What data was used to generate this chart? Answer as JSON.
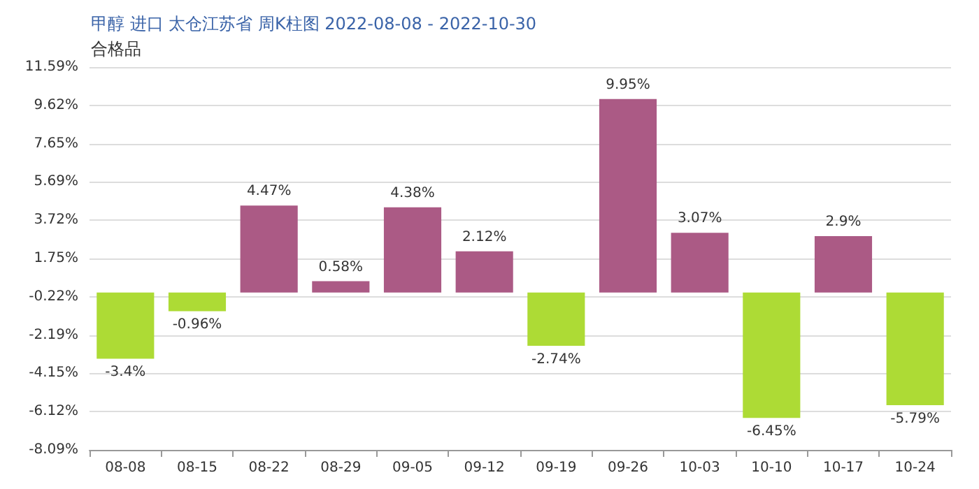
{
  "chart_data": {
    "type": "bar",
    "title": "甲醇 进口 太仓江苏省 周K柱图 2022-08-08 - 2022-10-30",
    "subtitle": "合格品",
    "categories": [
      "08-08",
      "08-15",
      "08-22",
      "08-29",
      "09-05",
      "09-12",
      "09-19",
      "09-26",
      "10-03",
      "10-10",
      "10-17",
      "10-24"
    ],
    "values": [
      -3.4,
      -0.96,
      4.47,
      0.58,
      4.38,
      2.12,
      -2.74,
      9.95,
      3.07,
      -6.45,
      2.9,
      -5.79
    ],
    "colors": [
      "#addb35",
      "#addb35",
      "#ab5a85",
      "#ab5a85",
      "#ab5a85",
      "#ab5a85",
      "#addb35",
      "#ab5a85",
      "#ab5a85",
      "#addb35",
      "#ab5a85",
      "#addb35"
    ],
    "value_labels": [
      "-3.4%",
      "-0.96%",
      "4.47%",
      "0.58%",
      "4.38%",
      "2.12%",
      "-2.74%",
      "9.95%",
      "3.07%",
      "-6.45%",
      "2.9%",
      "-5.79%"
    ],
    "ylim": [
      -8.09,
      11.59
    ],
    "yticks": [
      {
        "value": -8.09,
        "label": "-8.09%"
      },
      {
        "value": -6.12,
        "label": "-6.12%"
      },
      {
        "value": -4.15,
        "label": "-4.15%"
      },
      {
        "value": -2.19,
        "label": "-2.19%"
      },
      {
        "value": -0.22,
        "label": "-0.22%"
      },
      {
        "value": 1.75,
        "label": "1.75%"
      },
      {
        "value": 3.72,
        "label": "3.72%"
      },
      {
        "value": 5.69,
        "label": "5.69%"
      },
      {
        "value": 7.65,
        "label": "7.65%"
      },
      {
        "value": 9.62,
        "label": "9.62%"
      },
      {
        "value": 11.59,
        "label": "11.59%"
      }
    ],
    "grid": "y"
  }
}
